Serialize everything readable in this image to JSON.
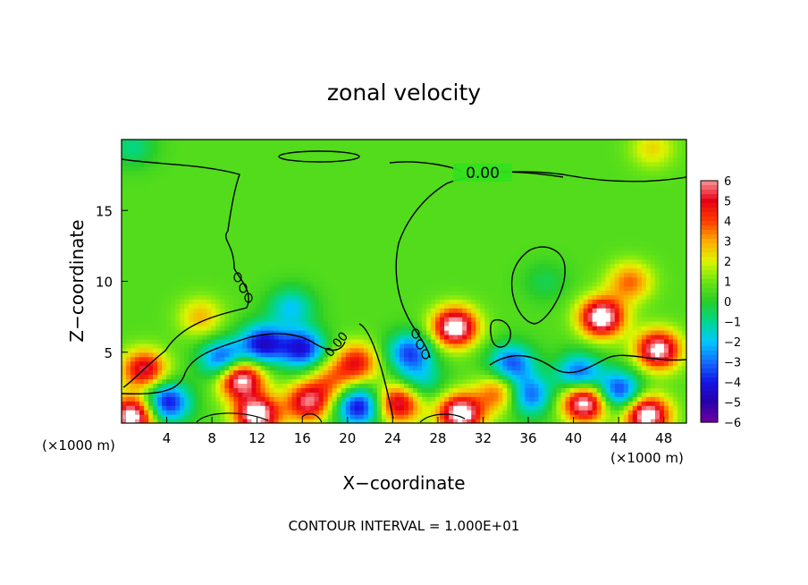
{
  "chart_data": {
    "type": "heatmap",
    "title": "zonal velocity",
    "xlabel": "X−coordinate",
    "ylabel": "Z−coordinate",
    "x_unit_left": "(×1000 m)",
    "x_unit_right": "(×1000 m)",
    "xlim": [
      0,
      50
    ],
    "ylim": [
      0,
      20
    ],
    "x_ticks": [
      4,
      8,
      12,
      16,
      20,
      24,
      28,
      32,
      36,
      40,
      44,
      48
    ],
    "y_ticks": [
      5,
      10,
      15
    ],
    "colorbar": {
      "range": [
        -6,
        6
      ],
      "ticks": [
        6,
        5,
        4,
        3,
        2,
        1,
        0,
        -1,
        -2,
        -3,
        -4,
        -5,
        -6
      ],
      "tick_labels": [
        "6",
        "5",
        "4",
        "3",
        "2",
        "1",
        "0",
        "−1",
        "−2",
        "−3",
        "−4",
        "−5",
        "−6"
      ]
    },
    "contour_label": "0.00",
    "contour_labels_small": [
      "0.00",
      "0.00"
    ],
    "footer": "CONTOUR INTERVAL = 1.000E+01",
    "background_value": 0.6,
    "features": [
      {
        "x": 2.0,
        "z": 3.8,
        "value": 4.8
      },
      {
        "x": 7.0,
        "z": 7.5,
        "value": 2.2
      },
      {
        "x": 10.5,
        "z": 3.2,
        "value": 6.5
      },
      {
        "x": 9.0,
        "z": 4.5,
        "value": -4.5
      },
      {
        "x": 12.5,
        "z": 5.6,
        "value": -5.0
      },
      {
        "x": 16.0,
        "z": 5.3,
        "value": -4.8
      },
      {
        "x": 15.0,
        "z": 8.2,
        "value": -2.5
      },
      {
        "x": 20.8,
        "z": 4.3,
        "value": 4.0
      },
      {
        "x": 18.5,
        "z": 3.0,
        "value": 2.5
      },
      {
        "x": 25.5,
        "z": 5.0,
        "value": -4.0
      },
      {
        "x": 29.5,
        "z": 6.8,
        "value": 6.5
      },
      {
        "x": 34.5,
        "z": 4.2,
        "value": -4.0
      },
      {
        "x": 33.5,
        "z": 2.2,
        "value": 3.5
      },
      {
        "x": 37.5,
        "z": 10.0,
        "value": -1.0
      },
      {
        "x": 42.5,
        "z": 7.5,
        "value": 6.5
      },
      {
        "x": 45.0,
        "z": 10.0,
        "value": 3.0
      },
      {
        "x": 47.5,
        "z": 5.2,
        "value": 6.0
      },
      {
        "x": 40.5,
        "z": 3.5,
        "value": -4.0
      },
      {
        "x": 4.0,
        "z": 1.5,
        "value": -5.0
      },
      {
        "x": 1.0,
        "z": 0.5,
        "value": 6.5
      },
      {
        "x": 12.0,
        "z": 0.6,
        "value": 6.5
      },
      {
        "x": 16.5,
        "z": 1.5,
        "value": 5.0
      },
      {
        "x": 21.0,
        "z": 1.2,
        "value": -5.0
      },
      {
        "x": 24.5,
        "z": 1.4,
        "value": 5.0
      },
      {
        "x": 30.0,
        "z": 0.7,
        "value": 6.5
      },
      {
        "x": 41.0,
        "z": 1.5,
        "value": 6.5
      },
      {
        "x": 46.5,
        "z": 0.6,
        "value": 6.5
      },
      {
        "x": 44.0,
        "z": 2.3,
        "value": -4.5
      },
      {
        "x": 36.0,
        "z": 2.0,
        "value": -4.0
      },
      {
        "x": 26.5,
        "z": 3.0,
        "value": -2.0
      },
      {
        "x": 1.0,
        "z": 19.5,
        "value": -1.5
      },
      {
        "x": 47.0,
        "z": 19.4,
        "value": 1.8
      }
    ]
  }
}
